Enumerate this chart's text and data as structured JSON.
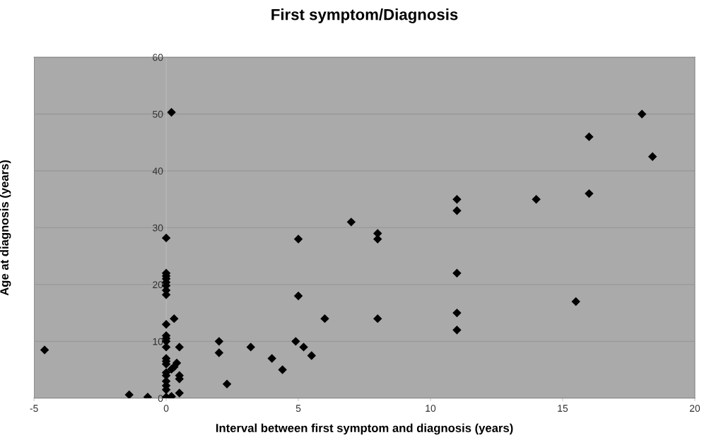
{
  "chart_data": {
    "type": "scatter",
    "title": "First symptom/Diagnosis",
    "xlabel": "Interval between first symptom and diagnosis (years)",
    "ylabel": "Age at diagnosis (years)",
    "series": [
      {
        "color": "#000000",
        "x": [
          -4.6,
          -1.4,
          -0.7,
          0,
          0,
          0,
          0,
          0,
          0,
          0,
          0,
          0,
          0,
          0,
          0,
          0,
          0,
          0,
          0,
          0,
          0,
          0,
          0,
          0,
          0,
          0.2,
          0.2,
          0.3,
          0.5,
          0.4,
          0.3,
          0.2,
          0.5,
          0.5,
          0.5,
          0.2,
          2,
          2,
          2.3,
          3.2,
          4,
          4.4,
          4.9,
          5.2,
          5.5,
          5,
          5,
          6,
          7,
          8,
          8,
          8,
          11,
          11,
          11,
          11,
          11,
          14,
          15.5,
          16,
          16,
          18,
          18.4
        ],
        "values": [
          8.5,
          0.6,
          0.2,
          28.2,
          22,
          21.5,
          21,
          20.4,
          19.8,
          19,
          18.2,
          13,
          11,
          10.5,
          10,
          9,
          7,
          6.5,
          6,
          4.5,
          4,
          3,
          2.2,
          1.5,
          0.2,
          50.3,
          0.3,
          14,
          9,
          6.2,
          5.5,
          5.1,
          4,
          3.4,
          0.9,
          0.3,
          10,
          8,
          2.5,
          9,
          7,
          5,
          10,
          9,
          7.5,
          28,
          18,
          14,
          31,
          29,
          28,
          14,
          35,
          33,
          22,
          15,
          12,
          35,
          17,
          46,
          36,
          50,
          42.5
        ]
      }
    ],
    "xlim": [
      -5,
      20
    ],
    "xticks": [
      -5,
      0,
      5,
      10,
      15,
      20
    ],
    "ylim": [
      0,
      60
    ],
    "yticks": [
      0,
      10,
      20,
      30,
      40,
      50,
      60
    ],
    "grid": "y",
    "marker": "diamond",
    "legend": false
  }
}
